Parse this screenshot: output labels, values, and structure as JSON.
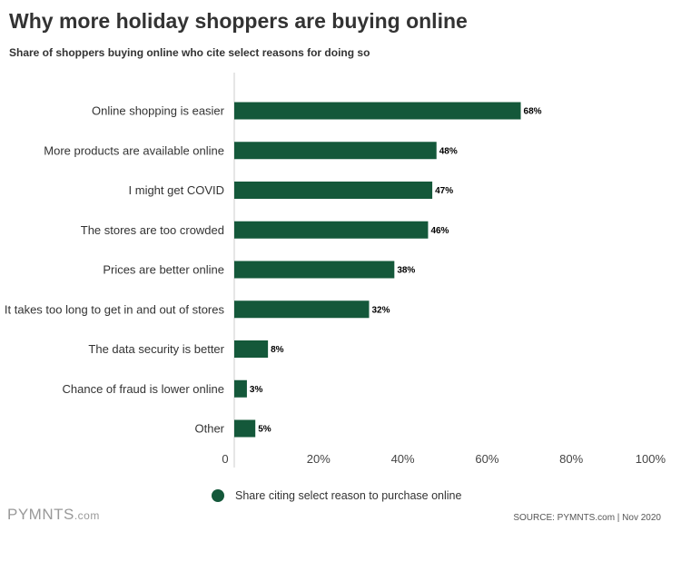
{
  "title": "Why more holiday shoppers are buying online",
  "subtitle": "Share of shoppers buying online who cite select reasons for doing so",
  "brand": {
    "name": "PYMNTS",
    "suffix": ".com"
  },
  "source": "SOURCE: PYMNTS.com  |  Nov 2020",
  "colors": {
    "bar": "#14583a",
    "title": "#333333",
    "axis": "#cccccc"
  },
  "chart_data": {
    "type": "bar",
    "orientation": "horizontal",
    "categories": [
      "Online shopping is easier",
      "More products are available online",
      "I might get COVID",
      "The stores are too crowded",
      "Prices are better online",
      "It takes too long to get in and out of stores",
      "The data security is better",
      "Chance of fraud is lower online",
      "Other"
    ],
    "series": [
      {
        "name": "Share citing select reason to purchase online",
        "values": [
          68,
          48,
          47,
          46,
          38,
          32,
          8,
          3,
          5
        ]
      }
    ],
    "value_labels": [
      "68%",
      "48%",
      "47%",
      "46%",
      "38%",
      "32%",
      "8%",
      "3%",
      "5%"
    ],
    "xlim": [
      0,
      100
    ],
    "ticks": [
      0,
      20,
      40,
      60,
      80,
      100
    ],
    "tick_labels": [
      "0",
      "20%",
      "40%",
      "60%",
      "80%",
      "100%"
    ],
    "grid": false,
    "legend_position": "bottom"
  }
}
